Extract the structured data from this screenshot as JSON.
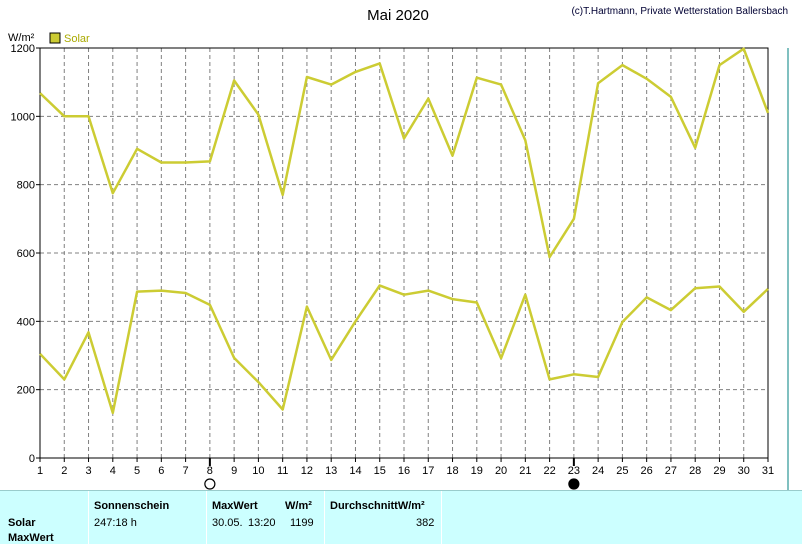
{
  "chart_data": {
    "type": "line",
    "title": "Mai 2020",
    "copyright": "(c)T.Hartmann, Private Wetterstation Ballersbach",
    "ylabel": "W/m²",
    "ylim": [
      0,
      1200
    ],
    "yticks": [
      0,
      200,
      400,
      600,
      800,
      1000,
      1200
    ],
    "x": [
      1,
      2,
      3,
      4,
      5,
      6,
      7,
      8,
      9,
      10,
      11,
      12,
      13,
      14,
      15,
      16,
      17,
      18,
      19,
      20,
      21,
      22,
      23,
      24,
      25,
      26,
      27,
      28,
      29,
      30,
      31
    ],
    "grid": true,
    "legend": {
      "label": "Solar",
      "placement": "top-left"
    },
    "series": [
      {
        "role": "max",
        "color": "#cccc33",
        "values": [
          1068,
          1000,
          1000,
          775,
          905,
          865,
          865,
          868,
          1105,
          1005,
          770,
          1115,
          1093,
          1130,
          1155,
          935,
          1052,
          885,
          1113,
          1093,
          930,
          588,
          700,
          1097,
          1150,
          1110,
          1057,
          908,
          1150,
          1198,
          1010
        ]
      },
      {
        "role": "mean",
        "color": "#cccc33",
        "values": [
          305,
          230,
          368,
          132,
          487,
          490,
          483,
          448,
          293,
          222,
          142,
          443,
          287,
          400,
          505,
          478,
          490,
          465,
          455,
          292,
          478,
          230,
          245,
          237,
          398,
          470,
          433,
          497,
          502,
          428,
          495
        ]
      }
    ],
    "moon_markers": [
      {
        "day": 8,
        "phase": "full-moon"
      },
      {
        "day": 23,
        "phase": "new-moon"
      }
    ]
  },
  "footer": {
    "row_labels": [
      "Solar",
      "MaxWert"
    ],
    "sonnenschein_header": "Sonnenschein",
    "sonnenschein_value": "247:18 h",
    "maxwert_header": "MaxWert",
    "maxwert_unit": "W/m²",
    "maxwert_date": "30.05.",
    "maxwert_time": "13:20",
    "maxwert_value": "1199",
    "durchschnitt_header": "DurchschnittW/m²",
    "durchschnitt_value": "382"
  }
}
